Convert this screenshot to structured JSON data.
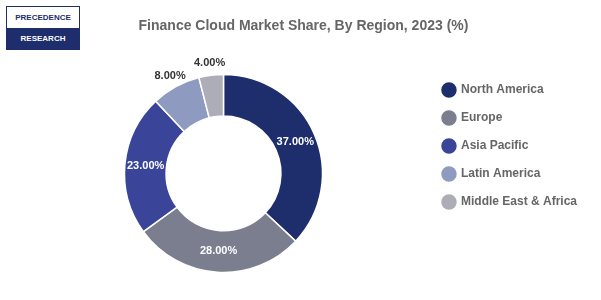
{
  "chart_data": {
    "type": "doughnut",
    "title": "Finance Cloud Market Share, By Region, 2023 (%)",
    "categories": [
      "North America",
      "Europe",
      "Asia Pacific",
      "Latin America",
      "Middle East & Africa"
    ],
    "values": [
      37.0,
      28.0,
      23.0,
      8.0,
      4.0
    ],
    "value_labels": [
      "37.00%",
      "28.00%",
      "23.00%",
      "8.00%",
      "4.00%"
    ],
    "colors": [
      "#1e2d6b",
      "#7a7e8f",
      "#3a4499",
      "#8e9abf",
      "#adadb8"
    ],
    "data_labels": true,
    "legend": "right",
    "annotations": [
      "PRECEDENCE",
      "RESEARCH"
    ]
  }
}
